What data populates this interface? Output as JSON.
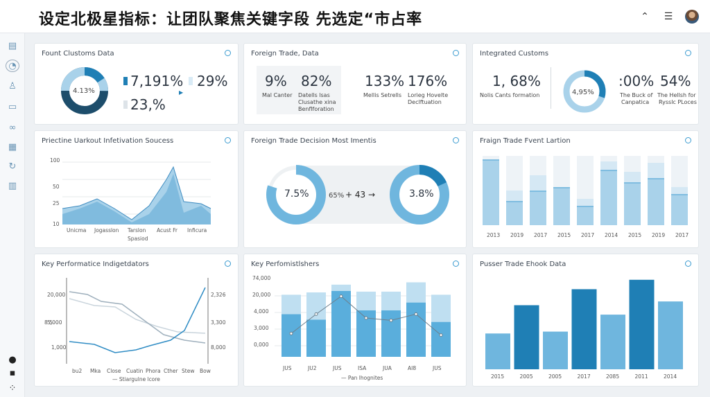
{
  "header": {
    "title": "设定北极星指标：让团队聚焦关键字段 先选定“市占率",
    "icons": [
      "chevron-up-icon",
      "filter-list-icon",
      "user-avatar"
    ]
  },
  "sidebar": {
    "icons": [
      "document-icon",
      "analytics-icon",
      "user-icon",
      "monitor-icon",
      "link-icon",
      "table-icon",
      "refresh-icon",
      "report-icon",
      "camera-icon",
      "message-icon",
      "expand-icon"
    ]
  },
  "cards": {
    "c1": {
      "title": "Fount Clustoms Data",
      "donut_label": "4.13%",
      "donut_value": 0.25,
      "m1": "7,191%",
      "m2": "29%",
      "m3": "23,%"
    },
    "c2": {
      "title": "Foreign Trade, Data",
      "m1": "9%",
      "l1": "Mal Canter",
      "m2": "82%",
      "l2a": "Datells lsas",
      "l2b": "Clusathe xina",
      "l2c": "Benflforation",
      "m3": "133%",
      "l3": "Mellis Setrells",
      "m4": "176%",
      "l4a": "Lorieg Hovelte",
      "l4b": "Declftuation"
    },
    "c3": {
      "title": "Integrated Customs",
      "m1": "1, 68%",
      "l1": "Nolis Cants formation",
      "donut_label": "4,95%",
      "donut_value": 0.3,
      "m2": ":00%",
      "l2a": "The Buck of",
      "l2b": "Canpatica",
      "m3": "54%",
      "l3a": "The Hellsh for",
      "l3b": "Rysslc PLoces"
    },
    "c4": {
      "title": "Priectine Uarkout Infetivation Soucess",
      "yticks": [
        "100",
        "50",
        "25",
        "10"
      ],
      "xticks": [
        "Unicma",
        "Jogasslon",
        "Tarslon",
        "Acust Fr",
        "Inficura"
      ],
      "xsub": "Spasiod"
    },
    "c5": {
      "title": "Foreign Trade Decision Most Imentis",
      "d1": "7.5%",
      "d1_value": 0.8,
      "mid": "65%",
      "arrow": "+ 43 →",
      "d2": "3.8%",
      "d2_value": 0.18
    },
    "c6": {
      "title": "Fraign Trade Fvent Lartion",
      "xticks": [
        "2013",
        "2019",
        "2017",
        "2015",
        "2017",
        "2014",
        "2015",
        "2019",
        "2017"
      ],
      "bars": [
        [
          0.95,
          0.0
        ],
        [
          0.35,
          0.15
        ],
        [
          0.5,
          0.22
        ],
        [
          0.55,
          0.0
        ],
        [
          0.28,
          0.1
        ],
        [
          0.8,
          0.12
        ],
        [
          0.62,
          0.15
        ],
        [
          0.68,
          0.22
        ],
        [
          0.45,
          0.1
        ]
      ]
    },
    "c7": {
      "title": "Key Performatice Indigetdators",
      "ylticks": [
        "20,000",
        "8 5",
        "5,000",
        "1,000"
      ],
      "yrticks": [
        "2,326",
        "3,300",
        "8,000"
      ],
      "xticks": [
        "bu2",
        "Mka",
        "Close",
        "Cuatin",
        "Phora",
        "Cther",
        "Stew",
        "Bow"
      ],
      "legend": "Stiargulne lcore"
    },
    "c8": {
      "title": "Key Perfomistlshers",
      "yticks": [
        "74,000",
        "20,000",
        "4,000",
        "3,000",
        "0,000"
      ],
      "xticks": [
        "JUS",
        "JU2",
        "JUS",
        "ISA",
        "JUA",
        "AI8",
        "JUS"
      ],
      "legend": "Pan lhognites",
      "bars": [
        [
          0.55,
          0.25
        ],
        [
          0.48,
          0.35
        ],
        [
          0.85,
          0.08
        ],
        [
          0.6,
          0.24
        ],
        [
          0.6,
          0.24
        ],
        [
          0.7,
          0.26
        ],
        [
          0.45,
          0.35
        ]
      ],
      "line": [
        0.3,
        0.55,
        0.78,
        0.5,
        0.47,
        0.55,
        0.28
      ]
    },
    "c9": {
      "title": "Pusser Trade Ehook Data",
      "xticks": [
        "2015",
        "2005",
        "2005",
        "2017",
        "2085",
        "2011",
        "2014"
      ],
      "values": [
        0.38,
        0.68,
        0.4,
        0.85,
        0.58,
        0.95,
        0.72
      ]
    }
  },
  "colors": {
    "accent": "#1f7fb5",
    "light": "#a9d2ea",
    "pale": "#d9ebf6",
    "dark": "#1d4d6b"
  }
}
